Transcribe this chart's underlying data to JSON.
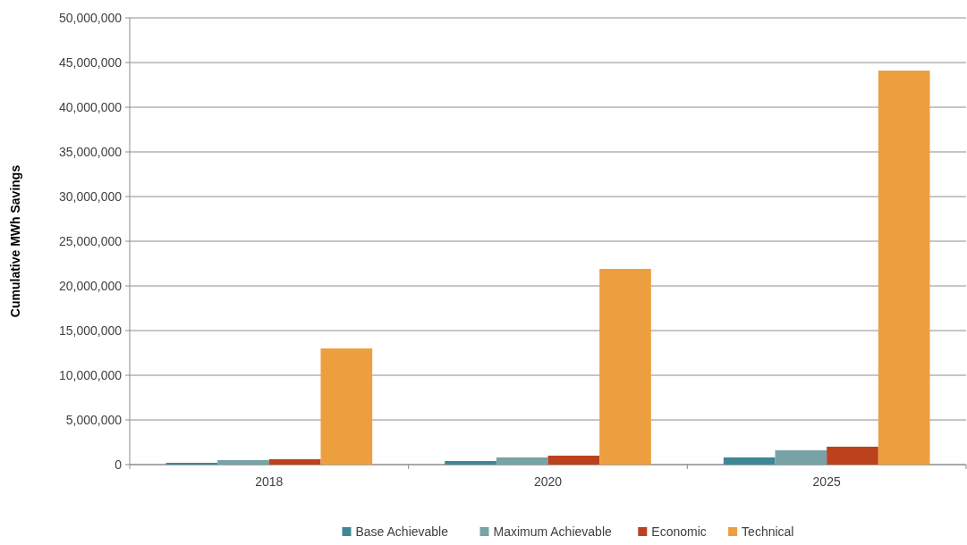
{
  "chart_data": {
    "type": "bar",
    "ylabel": "Cumulative MWh Savings",
    "categories": [
      "2018",
      "2020",
      "2025"
    ],
    "series": [
      {
        "name": "Base Achievable",
        "color": "#3f8796",
        "values": [
          200000,
          400000,
          800000
        ]
      },
      {
        "name": "Maximum Achievable",
        "color": "#77a3a6",
        "values": [
          500000,
          800000,
          1600000
        ]
      },
      {
        "name": "Economic",
        "color": "#bc421e",
        "values": [
          600000,
          1000000,
          2000000
        ]
      },
      {
        "name": "Technical",
        "color": "#ed9f3f",
        "values": [
          13000000,
          21900000,
          44100000
        ]
      }
    ],
    "ylim": [
      0,
      50000000
    ],
    "yticks": [
      {
        "value": 0,
        "label": "0"
      },
      {
        "value": 5000000,
        "label": "5,000,000"
      },
      {
        "value": 10000000,
        "label": "10,000,000"
      },
      {
        "value": 15000000,
        "label": "15,000,000"
      },
      {
        "value": 20000000,
        "label": "20,000,000"
      },
      {
        "value": 25000000,
        "label": "25,000,000"
      },
      {
        "value": 30000000,
        "label": "30,000,000"
      },
      {
        "value": 35000000,
        "label": "35,000,000"
      },
      {
        "value": 40000000,
        "label": "40,000,000"
      },
      {
        "value": 45000000,
        "label": "45,000,000"
      },
      {
        "value": 50000000,
        "label": "50,000,000"
      }
    ],
    "grid": "y",
    "legend": "bottom"
  }
}
